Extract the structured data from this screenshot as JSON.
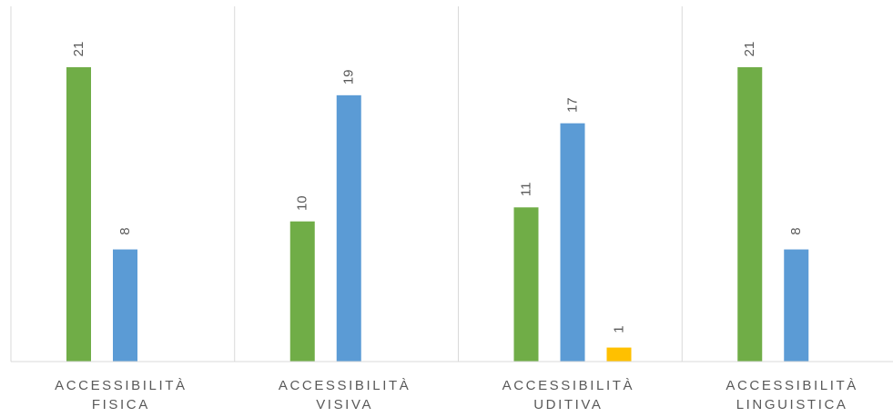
{
  "chart_data": {
    "type": "bar",
    "categories": [
      [
        "ACCESSIBILITÀ",
        "FISICA"
      ],
      [
        "ACCESSIBILITÀ",
        "VISIVA"
      ],
      [
        "ACCESSIBILITÀ",
        "UDITIVA"
      ],
      [
        "ACCESSIBILITÀ",
        "LINGUISTICA"
      ]
    ],
    "series": [
      {
        "color": "#70ad47",
        "values": [
          21,
          10,
          11,
          21
        ]
      },
      {
        "color": "#5b9bd5",
        "values": [
          8,
          19,
          17,
          8
        ]
      },
      {
        "color": "#ffc000",
        "values": [
          0,
          0,
          1,
          0
        ]
      }
    ],
    "data_labels": true,
    "grid": "vertical category separators",
    "legend": "none",
    "ylim": [
      0,
      25
    ]
  }
}
